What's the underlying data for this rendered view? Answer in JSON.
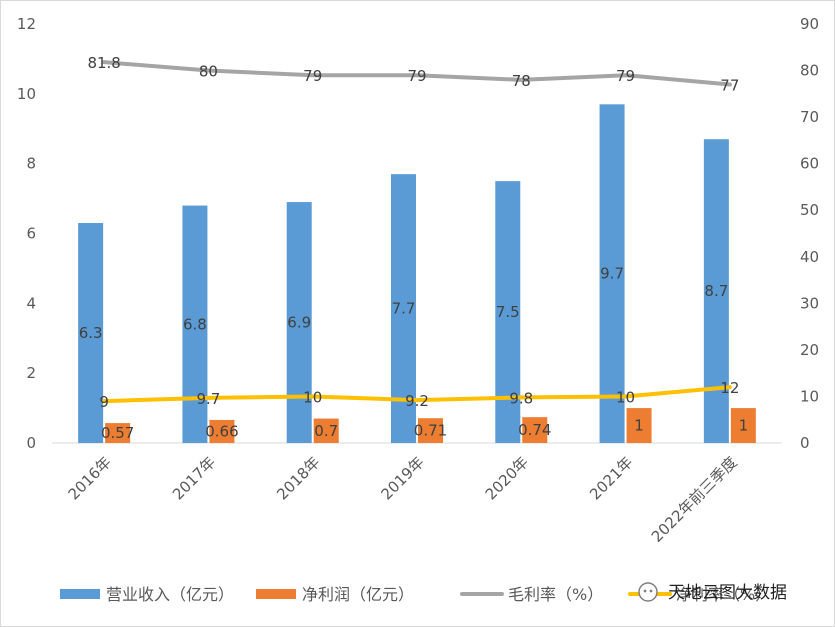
{
  "chart_data": {
    "type": "bar",
    "categories": [
      "2016年",
      "2017年",
      "2018年",
      "2019年",
      "2020年",
      "2021年",
      "2022年前三季度"
    ],
    "series": [
      {
        "name": "营业收入（亿元）",
        "kind": "bar",
        "axis": "left",
        "color": "#5B9BD5",
        "values": [
          6.3,
          6.8,
          6.9,
          7.7,
          7.5,
          9.7,
          8.7
        ],
        "labels": [
          "6.3",
          "6.8",
          "6.9",
          "7.7",
          "7.5",
          "9.7",
          "8.7"
        ]
      },
      {
        "name": "净利润（亿元）",
        "kind": "bar",
        "axis": "left",
        "color": "#ED7D31",
        "values": [
          0.57,
          0.66,
          0.7,
          0.71,
          0.74,
          1,
          1
        ],
        "labels": [
          "0.57",
          "0.66",
          "0.7",
          "0.71",
          "0.74",
          "1",
          "1"
        ]
      },
      {
        "name": "毛利率（%）",
        "kind": "line",
        "axis": "right",
        "color": "#A5A5A5",
        "values": [
          81.8,
          80,
          79,
          79,
          78,
          79,
          77
        ],
        "labels": [
          "81.8",
          "80",
          "79",
          "79",
          "78",
          "79",
          "77"
        ]
      },
      {
        "name": "净利率（%）",
        "kind": "line",
        "axis": "right",
        "color": "#FFC000",
        "values": [
          9,
          9.7,
          10,
          9.2,
          9.8,
          10,
          12
        ],
        "labels": [
          "9",
          "9.7",
          "10",
          "9.2",
          "9.8",
          "10",
          "12"
        ]
      }
    ],
    "ylim": [
      0,
      12
    ],
    "yticks": [
      "0",
      "2",
      "4",
      "6",
      "8",
      "10",
      "12"
    ],
    "y2lim": [
      0,
      90
    ],
    "y2ticks": [
      "0",
      "10",
      "20",
      "30",
      "40",
      "50",
      "60",
      "70",
      "80",
      "90"
    ],
    "grid": false,
    "legend_position": "bottom"
  },
  "watermark": {
    "text": "天地云图大数据"
  }
}
